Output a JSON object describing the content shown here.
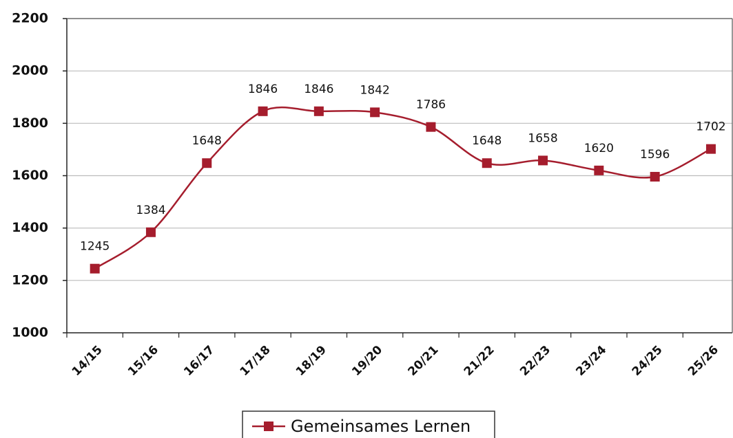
{
  "chart_data": {
    "type": "line",
    "categories": [
      "14/15",
      "15/16",
      "16/17",
      "17/18",
      "18/19",
      "19/20",
      "20/21",
      "21/22",
      "22/23",
      "23/24",
      "24/25",
      "25/26"
    ],
    "series": [
      {
        "name": "Gemeinsames Lernen",
        "color": "#a51d2d",
        "values": [
          1245,
          1384,
          1648,
          1846,
          1846,
          1842,
          1786,
          1648,
          1658,
          1620,
          1596,
          1702
        ]
      }
    ],
    "ylim": [
      1000,
      2200
    ],
    "yticks": [
      1000,
      1200,
      1400,
      1600,
      1800,
      2000,
      2200
    ],
    "grid": true,
    "legend": "bottom",
    "smooth": true
  }
}
